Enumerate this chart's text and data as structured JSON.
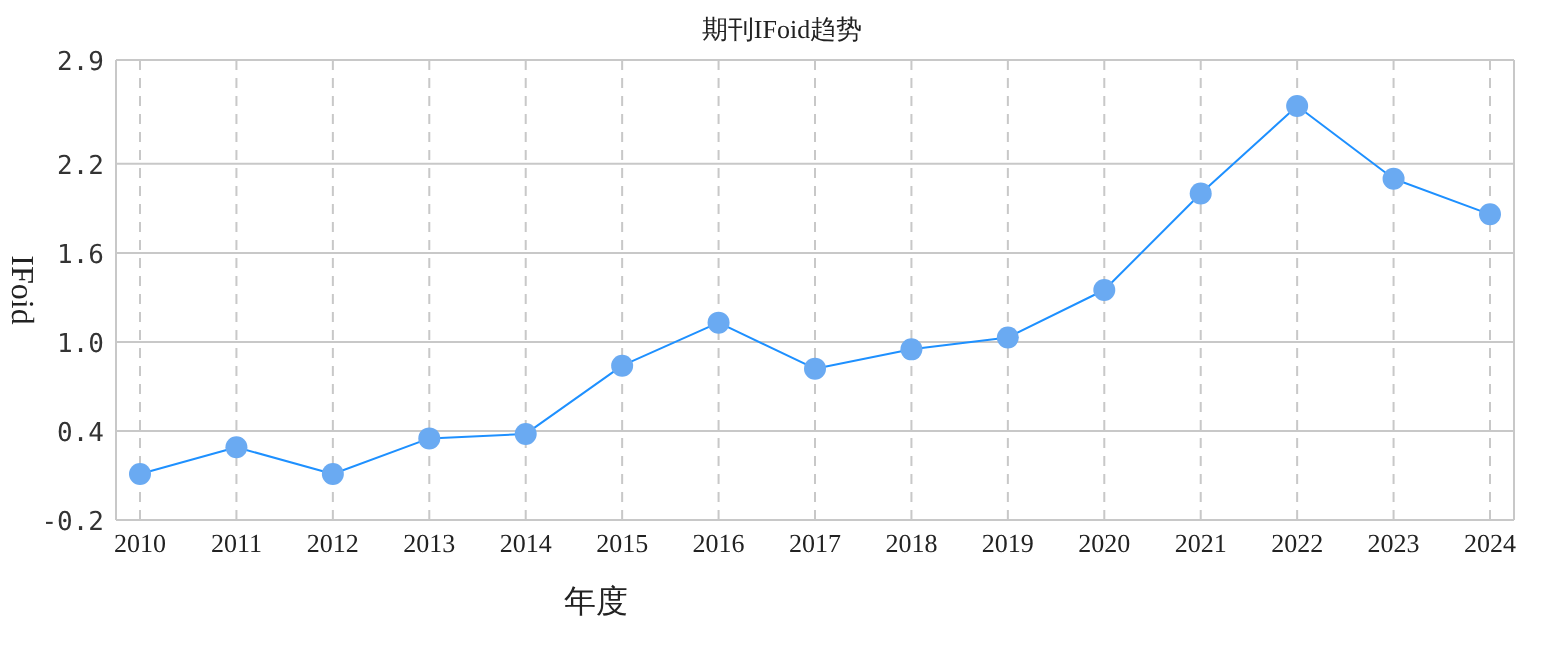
{
  "chart_data": {
    "type": "line",
    "title": "期刊IFoid趋势",
    "xlabel": "年度",
    "ylabel": "IFoid",
    "categories": [
      "2010",
      "2011",
      "2012",
      "2013",
      "2014",
      "2015",
      "2016",
      "2017",
      "2018",
      "2019",
      "2020",
      "2021",
      "2022",
      "2023",
      "2024"
    ],
    "series": [
      {
        "color": "#1e90ff",
        "values": [
          0.11,
          0.29,
          0.11,
          0.35,
          0.38,
          0.84,
          1.13,
          0.82,
          0.95,
          1.03,
          1.35,
          2.0,
          2.59,
          2.1,
          1.86
        ]
      }
    ],
    "ylim": [
      -0.2,
      2.9
    ],
    "yticks": [
      -0.2,
      0.4,
      {
        "value": 1.0,
        "label": "1.0"
      },
      1.6,
      2.2,
      2.9
    ],
    "grid": true,
    "marker": "circle",
    "line_style": "solid"
  }
}
